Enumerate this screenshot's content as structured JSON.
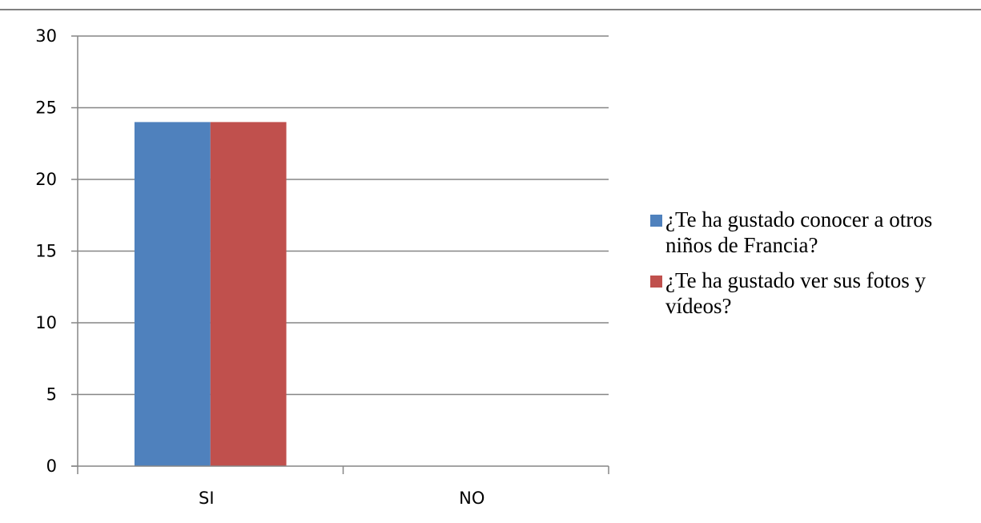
{
  "chart_data": {
    "type": "bar",
    "title": "",
    "xlabel": "",
    "ylabel": "",
    "categories": [
      "SI",
      "NO"
    ],
    "series": [
      {
        "name": "¿Te ha gustado conocer a otros niños de Francia?",
        "color": "#4f81bd",
        "values": [
          24,
          0
        ]
      },
      {
        "name": "¿Te ha gustado ver sus fotos y vídeos?",
        "color": "#c0504d",
        "values": [
          24,
          0
        ]
      }
    ],
    "ylim": [
      0,
      30
    ],
    "yticks": [
      0,
      5,
      10,
      15,
      20,
      25,
      30
    ],
    "grid": true,
    "legend_position": "right"
  }
}
